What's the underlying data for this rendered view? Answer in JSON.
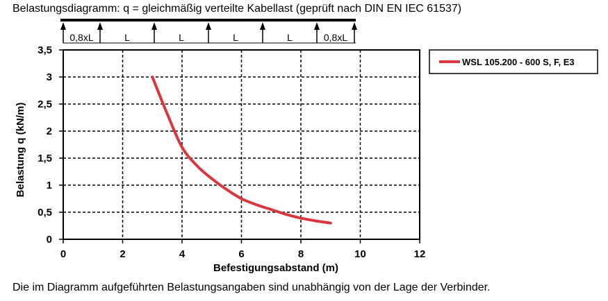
{
  "title": "Belastungsdiagramm: q = gleichmäßig verteilte Kabellast (geprüft nach DIN EN IEC 61537)",
  "footer_note": "Die im Diagramm aufgeführten Belastungsangaben sind unabhängig von der Lage der Verbinder.",
  "span_diagram": {
    "labels": [
      "0,8xL",
      "L",
      "L",
      "L",
      "L",
      "0,8xL"
    ]
  },
  "chart_data": {
    "type": "line",
    "xlabel": "Befestigungsabstand (m)",
    "ylabel": "Belastung q (kN/m)",
    "xlim": [
      0,
      12
    ],
    "ylim": [
      0,
      3.5
    ],
    "x_ticks": [
      "0",
      "2",
      "4",
      "6",
      "8",
      "10",
      "12"
    ],
    "y_ticks": [
      "0",
      "0,5",
      "1",
      "1,5",
      "2",
      "2,5",
      "3",
      "3,5"
    ],
    "grid": true,
    "legend_position": "right",
    "series": [
      {
        "name": "WSL 105.200 - 600 S, F, E3",
        "color": "#d9363e",
        "x": [
          3.0,
          3.5,
          4.0,
          4.5,
          5.0,
          5.5,
          6.0,
          6.5,
          7.0,
          7.5,
          8.0,
          8.5,
          9.0
        ],
        "y": [
          3.0,
          2.32,
          1.7,
          1.36,
          1.12,
          0.92,
          0.75,
          0.64,
          0.55,
          0.46,
          0.39,
          0.34,
          0.3
        ]
      }
    ]
  }
}
